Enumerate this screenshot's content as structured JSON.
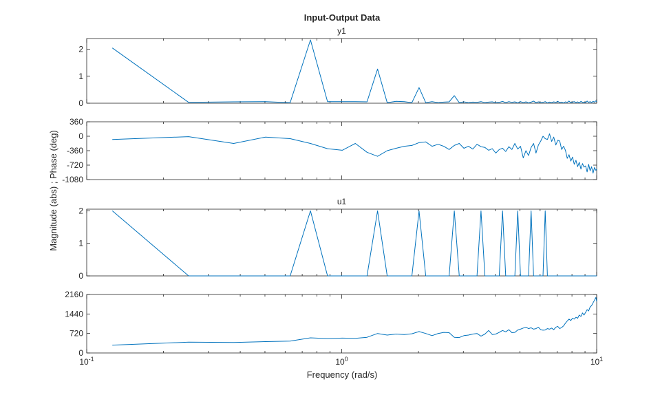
{
  "figure": {
    "title": "Input-Output Data",
    "xlabel": "Frequency  (rad/s)",
    "ylabel": "Magnitude (abs) ; Phase (deg)",
    "series_color": "#0072bd"
  },
  "chart_data": [
    {
      "type": "line",
      "title": "y1",
      "quantity": "magnitude",
      "xscale": "log",
      "xlim": [
        0.1,
        10
      ],
      "ylim": [
        0,
        2.4
      ],
      "yticks": [
        "0",
        "1",
        "2"
      ],
      "ytick_values": [
        0,
        1,
        2
      ],
      "series": [
        {
          "x": [
            0.126,
            0.251,
            0.377,
            0.503,
            0.628,
            0.754,
            0.88,
            1.005,
            1.131,
            1.257,
            1.382,
            1.508,
            1.634,
            1.759,
            1.885,
            2.011,
            2.136,
            2.262,
            2.388,
            2.513,
            2.639,
            2.765,
            2.89,
            3.016,
            3.142,
            3.267,
            3.393,
            3.519,
            3.644,
            3.77,
            3.896,
            4.021,
            4.147,
            4.273,
            4.398,
            4.524,
            4.65,
            4.775,
            4.901,
            5.027,
            5.152,
            5.278,
            5.404,
            5.529,
            5.655,
            5.781,
            5.906,
            6.032,
            6.158,
            6.283,
            6.409,
            6.535,
            6.66,
            6.786,
            6.912,
            7.037,
            7.163,
            7.288,
            7.414,
            7.54,
            7.665,
            7.791,
            7.917,
            8.042,
            8.168,
            8.294,
            8.419,
            8.545,
            8.671,
            8.796,
            8.922,
            9.048,
            9.173,
            9.299,
            9.425,
            9.55,
            9.676,
            9.802,
            9.927,
            10.0
          ],
          "y": [
            2.05,
            0.03,
            0.05,
            0.06,
            0.02,
            2.35,
            0.06,
            0.06,
            0.06,
            0.05,
            1.27,
            0.02,
            0.07,
            0.06,
            0.02,
            0.58,
            0.02,
            0.06,
            0.02,
            0.04,
            0.05,
            0.28,
            0.02,
            0.05,
            0.02,
            0.04,
            0.03,
            0.06,
            0.02,
            0.04,
            0.05,
            0.02,
            0.03,
            0.07,
            0.02,
            0.06,
            0.03,
            0.05,
            0.01,
            0.06,
            0.02,
            0.05,
            0.01,
            0.04,
            0.08,
            0.02,
            0.05,
            0.02,
            0.03,
            0.06,
            0.01,
            0.04,
            0.02,
            0.05,
            0.03,
            0.07,
            0.02,
            0.04,
            0.01,
            0.05,
            0.03,
            0.08,
            0.02,
            0.04,
            0.06,
            0.02,
            0.05,
            0.01,
            0.07,
            0.03,
            0.04,
            0.02,
            0.08,
            0.03,
            0.06,
            0.02,
            0.07,
            0.04,
            0.09,
            0.05
          ]
        }
      ]
    },
    {
      "type": "line",
      "title": "",
      "quantity": "phase",
      "xscale": "log",
      "xlim": [
        0.1,
        10
      ],
      "ylim": [
        -1080,
        360
      ],
      "yticks": [
        "360",
        "0",
        "-360",
        "-720",
        "-1080"
      ],
      "ytick_values": [
        360,
        0,
        -360,
        -720,
        -1080
      ],
      "series": [
        {
          "x": [
            0.126,
            0.251,
            0.377,
            0.503,
            0.628,
            0.754,
            0.88,
            1.005,
            1.131,
            1.257,
            1.382,
            1.508,
            1.634,
            1.759,
            1.885,
            2.011,
            2.136,
            2.262,
            2.388,
            2.513,
            2.639,
            2.765,
            2.89,
            3.016,
            3.142,
            3.267,
            3.393,
            3.519,
            3.644,
            3.77,
            3.896,
            4.021,
            4.147,
            4.273,
            4.398,
            4.524,
            4.65,
            4.775,
            4.901,
            5.027,
            5.152,
            5.278,
            5.404,
            5.529,
            5.655,
            5.781,
            5.906,
            6.032,
            6.158,
            6.283,
            6.409,
            6.535,
            6.66,
            6.786,
            6.912,
            7.037,
            7.163,
            7.288,
            7.414,
            7.54,
            7.665,
            7.791,
            7.917,
            8.042,
            8.168,
            8.294,
            8.419,
            8.545,
            8.671,
            8.796,
            8.922,
            9.048,
            9.173,
            9.299,
            9.425,
            9.55,
            9.676,
            9.802,
            9.927,
            10.0
          ],
          "y": [
            -80,
            -10,
            -180,
            -20,
            -60,
            -180,
            -310,
            -350,
            -180,
            -400,
            -500,
            -360,
            -300,
            -250,
            -230,
            -160,
            -140,
            -250,
            -200,
            -250,
            -330,
            -230,
            -180,
            -300,
            -250,
            -320,
            -200,
            -260,
            -280,
            -350,
            -310,
            -420,
            -330,
            -300,
            -380,
            -260,
            -330,
            -180,
            -320,
            -250,
            -540,
            -360,
            -480,
            -280,
            -180,
            -420,
            -220,
            -120,
            0,
            -60,
            -80,
            60,
            -130,
            -20,
            -220,
            -100,
            -120,
            -330,
            -250,
            -350,
            -550,
            -460,
            -620,
            -520,
            -700,
            -600,
            -760,
            -650,
            -820,
            -680,
            -770,
            -740,
            -890,
            -700,
            -860,
            -760,
            -920,
            -780,
            -850,
            -820
          ]
        }
      ]
    },
    {
      "type": "line",
      "title": "u1",
      "quantity": "magnitude",
      "xscale": "log",
      "xlim": [
        0.1,
        10
      ],
      "ylim": [
        0,
        2.05
      ],
      "yticks": [
        "0",
        "1",
        "2"
      ],
      "ytick_values": [
        0,
        1,
        2
      ],
      "series": [
        {
          "x": [
            0.126,
            0.251,
            0.377,
            0.503,
            0.628,
            0.754,
            0.88,
            1.005,
            1.131,
            1.257,
            1.382,
            1.508,
            1.634,
            1.759,
            1.885,
            2.011,
            2.136,
            2.262,
            2.388,
            2.513,
            2.639,
            2.765,
            2.89,
            3.016,
            3.142,
            3.267,
            3.393,
            3.519,
            3.644,
            3.77,
            3.896,
            4.021,
            4.147,
            4.273,
            4.398,
            4.524,
            4.65,
            4.775,
            4.901,
            5.027,
            5.152,
            5.278,
            5.404,
            5.529,
            5.655,
            5.781,
            5.906,
            6.032,
            6.158,
            6.283,
            6.409,
            10.0
          ],
          "y": [
            2.0,
            0,
            0,
            0,
            0,
            2.0,
            0,
            0,
            0,
            0,
            2.0,
            0,
            0,
            0,
            0,
            2.0,
            0,
            0,
            0,
            0,
            0,
            2.0,
            0,
            0,
            0,
            0,
            0,
            2.0,
            0,
            0,
            0,
            0,
            0,
            2.0,
            0,
            0,
            0,
            0,
            2.0,
            0,
            0,
            0,
            0,
            2.0,
            0,
            0,
            0,
            0,
            0,
            2.0,
            0,
            0
          ]
        }
      ]
    },
    {
      "type": "line",
      "title": "",
      "quantity": "phase",
      "xscale": "log",
      "xlim": [
        0.1,
        10
      ],
      "ylim": [
        0,
        2160
      ],
      "yticks": [
        "0",
        "720",
        "1440",
        "2160"
      ],
      "ytick_values": [
        0,
        720,
        1440,
        2160
      ],
      "series": [
        {
          "x": [
            0.126,
            0.251,
            0.377,
            0.503,
            0.628,
            0.754,
            0.88,
            1.005,
            1.131,
            1.257,
            1.382,
            1.508,
            1.634,
            1.759,
            1.885,
            2.011,
            2.136,
            2.262,
            2.388,
            2.513,
            2.639,
            2.765,
            2.89,
            3.016,
            3.142,
            3.267,
            3.393,
            3.519,
            3.644,
            3.77,
            3.896,
            4.021,
            4.147,
            4.273,
            4.398,
            4.524,
            4.65,
            4.775,
            4.901,
            5.027,
            5.152,
            5.278,
            5.404,
            5.529,
            5.655,
            5.781,
            5.906,
            6.032,
            6.158,
            6.283,
            6.409,
            6.535,
            6.66,
            6.786,
            6.912,
            7.037,
            7.163,
            7.288,
            7.414,
            7.54,
            7.665,
            7.791,
            7.917,
            8.042,
            8.168,
            8.294,
            8.419,
            8.545,
            8.671,
            8.796,
            8.922,
            9.048,
            9.173,
            9.299,
            9.425,
            9.55,
            9.676,
            9.802,
            9.927,
            10.0
          ],
          "y": [
            290,
            400,
            390,
            420,
            440,
            560,
            530,
            550,
            540,
            580,
            720,
            660,
            700,
            680,
            710,
            790,
            720,
            640,
            720,
            760,
            750,
            580,
            570,
            640,
            660,
            700,
            720,
            620,
            700,
            830,
            680,
            700,
            760,
            830,
            780,
            860,
            750,
            760,
            850,
            880,
            920,
            950,
            900,
            930,
            880,
            900,
            950,
            860,
            840,
            850,
            900,
            880,
            920,
            860,
            950,
            980,
            900,
            940,
            1000,
            1100,
            1180,
            1250,
            1200,
            1280,
            1250,
            1320,
            1280,
            1400,
            1350,
            1480,
            1400,
            1500,
            1600,
            1550,
            1700,
            1750,
            1850,
            1950,
            2050,
            1900
          ]
        }
      ]
    }
  ]
}
